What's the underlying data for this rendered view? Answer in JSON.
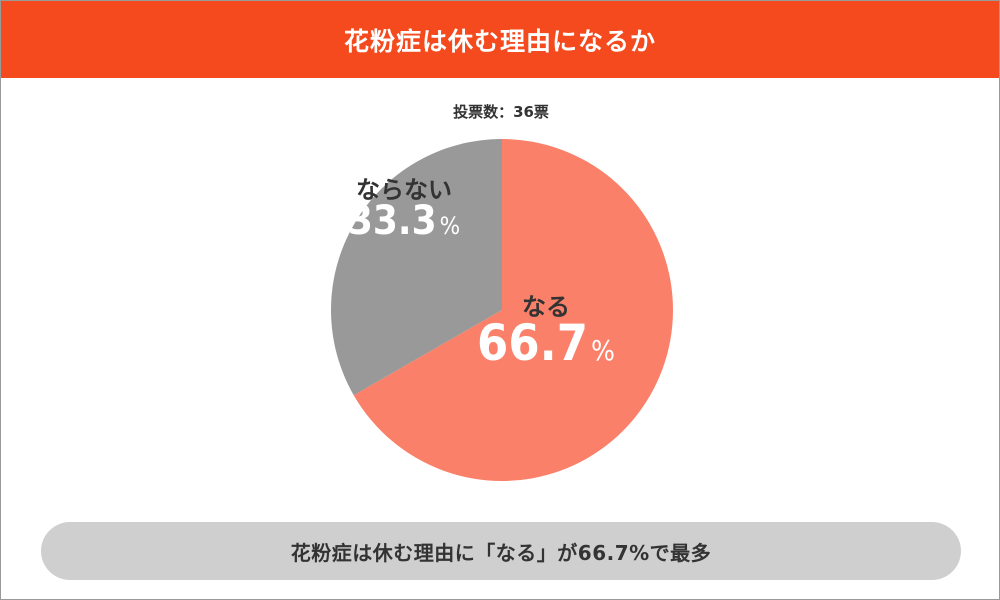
{
  "header": {
    "title": "花粉症は休む理由になるか"
  },
  "vote_count": "投票数：36票",
  "summary": {
    "text": "花粉症は休む理由に「なる」が66.7%で最多"
  },
  "chart_data": {
    "type": "pie",
    "title": "花粉症は休む理由になるか",
    "slices": [
      {
        "label": "なる",
        "value": 66.7,
        "display": "66.7",
        "unit": "%",
        "color": "#fa8069"
      },
      {
        "label": "ならない",
        "value": 33.3,
        "display": "33.3",
        "unit": "%",
        "color": "#999999"
      }
    ],
    "start": "12 o'clock",
    "direction": "clockwise"
  }
}
